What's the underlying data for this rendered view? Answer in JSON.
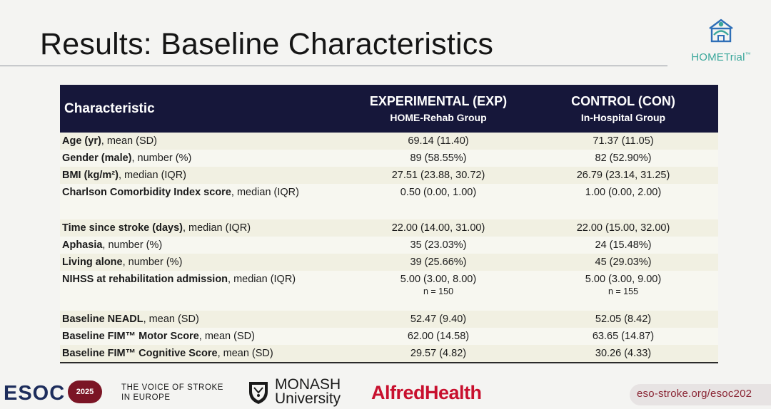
{
  "slide": {
    "title": "Results: Baseline Characteristics"
  },
  "logo": {
    "home": "HOME",
    "trial": "Trial",
    "tm": "™"
  },
  "table": {
    "headers": {
      "characteristic": "Characteristic",
      "exp_title": "EXPERIMENTAL (EXP)",
      "exp_sub": "HOME-Rehab Group",
      "con_title": "CONTROL (CON)",
      "con_sub": "In-Hospital Group"
    },
    "rows": [
      {
        "bold": "Age (yr)",
        "rest": ", mean (SD)",
        "exp": "69.14 (11.40)",
        "con": "71.37 (11.05)"
      },
      {
        "bold": "Gender (male)",
        "rest": ", number (%)",
        "exp": "89 (58.55%)",
        "con": "82 (52.90%)"
      },
      {
        "bold": "BMI (kg/m²)",
        "rest": ", median (IQR)",
        "exp": "27.51 (23.88, 30.72)",
        "con": "26.79 (23.14, 31.25)"
      },
      {
        "bold": "Charlson Comorbidity Index score",
        "rest": ", median (IQR)",
        "exp": "0.50 (0.00, 1.00)",
        "con": "1.00 (0.00, 2.00)"
      },
      {
        "bold": "Time since stroke (days)",
        "rest": ", median (IQR)",
        "exp": "22.00 (14.00, 31.00)",
        "con": "22.00 (15.00, 32.00)"
      },
      {
        "bold": "Aphasia",
        "rest": ", number (%)",
        "exp": "35 (23.03%)",
        "con": "24 (15.48%)"
      },
      {
        "bold": "Living alone",
        "rest": ", number (%)",
        "exp": "39 (25.66%)",
        "con": "45 (29.03%)"
      },
      {
        "bold": "NIHSS at rehabilitation admission",
        "rest": ", median (IQR)",
        "exp": "5.00 (3.00, 8.00)",
        "exp_n": "n = 150",
        "con": "5.00 (3.00, 9.00)",
        "con_n": "n = 155"
      },
      {
        "bold": "Baseline NEADL",
        "rest": ", mean (SD)",
        "exp": "52.47 (9.40)",
        "con": "52.05 (8.42)"
      },
      {
        "bold": "Baseline FIM™ Motor Score",
        "rest": ", mean (SD)",
        "exp": "62.00 (14.58)",
        "con": "63.65 (14.87)"
      },
      {
        "bold": "Baseline FIM™ Cognitive Score",
        "rest": ", mean (SD)",
        "exp": "29.57 (4.82)",
        "con": "30.26 (4.33)"
      }
    ]
  },
  "footer": {
    "esoc": "ESOC",
    "esoc_year": "2025",
    "voice_line1": "THE VOICE OF STROKE",
    "voice_line2": "IN EUROPE",
    "monash_line1": "MONASH",
    "monash_line2": "University",
    "alfred": "Alfred",
    "health": "Health",
    "url": "eso-stroke.org/esoc202"
  },
  "colors": {
    "header_bg": "#16173a",
    "row_odd": "#f1f0e2",
    "row_even": "#f7f7f0",
    "logo_teal": "#3aa79b",
    "alfred_red": "#c8102e",
    "esoc_navy": "#1d2d5c",
    "esoc_badge": "#7b1525"
  }
}
